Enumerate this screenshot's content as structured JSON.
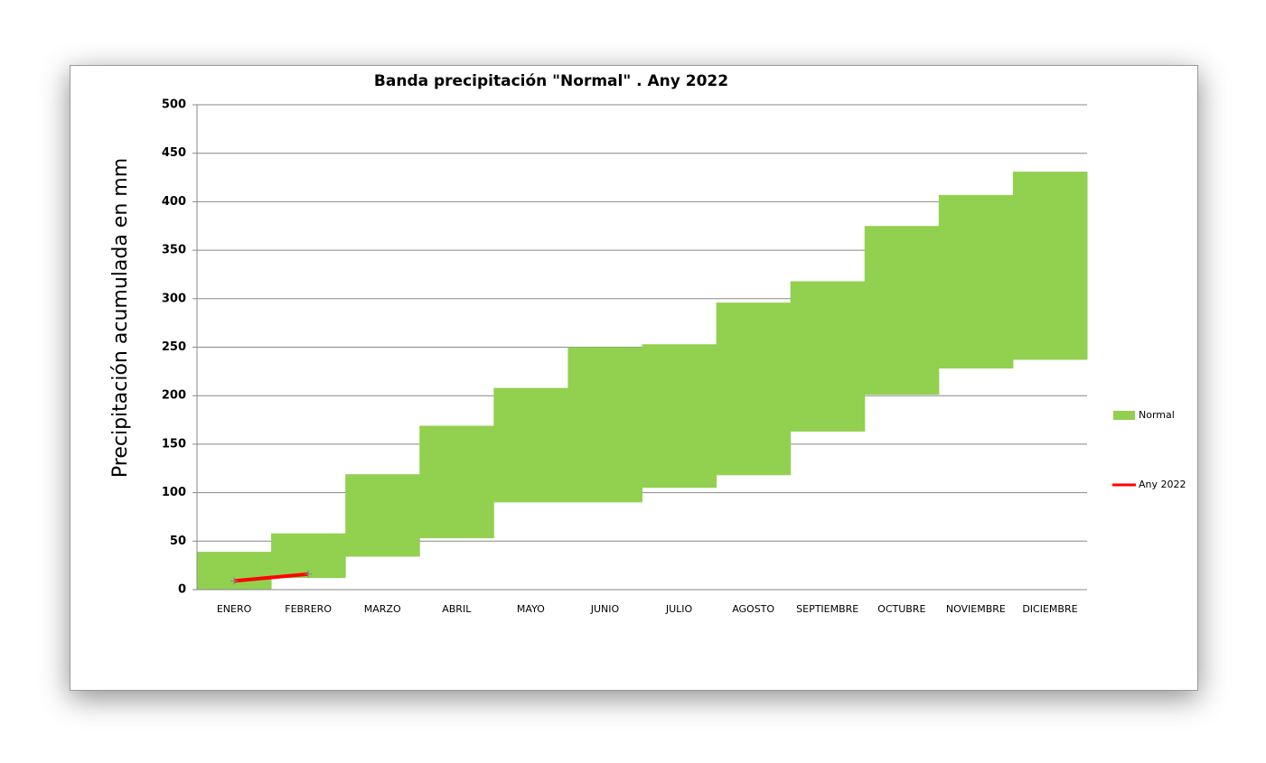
{
  "chart_data": {
    "type": "band",
    "title": "Banda precipitación \"Normal\" . Any 2022",
    "y_label": "Precipitación acumulada en mm",
    "categories": [
      "ENERO",
      "FEBRERO",
      "MARZO",
      "ABRIL",
      "MAYO",
      "JUNIO",
      "JULIO",
      "AGOSTO",
      "SEPTIEMBRE",
      "OCTUBRE",
      "NOVIEMBRE",
      "DICIEMBRE"
    ],
    "series": [
      {
        "name": "Normal",
        "color": "#92d050",
        "low": [
          0,
          12,
          34,
          53,
          90,
          90,
          105,
          118,
          163,
          201,
          228,
          237
        ],
        "high": [
          39,
          58,
          119,
          169,
          208,
          250,
          253,
          296,
          318,
          375,
          407,
          431
        ]
      },
      {
        "name": "Any 2022",
        "color": "#ff0000",
        "values": [
          9,
          16,
          null,
          null,
          null,
          null,
          null,
          null,
          null,
          null,
          null,
          null
        ]
      }
    ],
    "ylim": [
      0,
      500
    ],
    "yticks": [
      0,
      50,
      100,
      150,
      200,
      250,
      300,
      350,
      400,
      450,
      500
    ],
    "grid": true,
    "legend": "right"
  }
}
